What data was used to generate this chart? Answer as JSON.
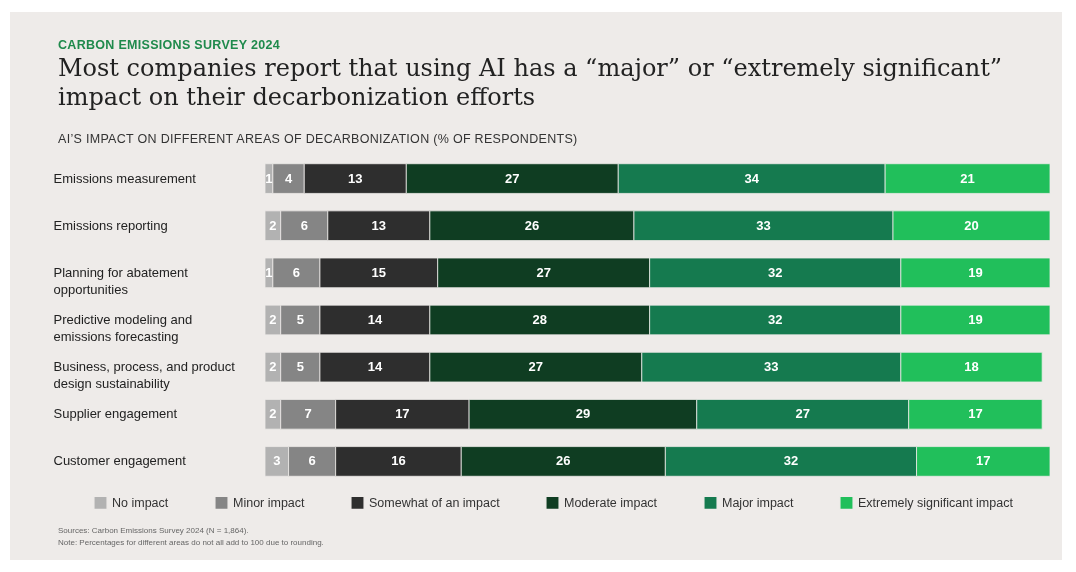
{
  "chart_data": {
    "type": "bar",
    "orientation": "horizontal",
    "stacked": true,
    "data_labels": true,
    "legend": "bottom",
    "grid": false,
    "subtitle": "CARBON EMISSIONS SURVEY 2024",
    "title": "Most companies report that using AI has a “major” or “extremely significant” impact on their decarbonization efforts",
    "annotations": [
      "AI’S IMPACT ON DIFFERENT AREAS OF DECARBONIZATION (% OF RESPONDENTS)",
      "Sources: Carbon Emissions Survey 2024 (N = 1,864).",
      "Note: Percentages for different areas do not all add to 100 due to rounding."
    ],
    "categories": [
      "Emissions measurement",
      "Emissions reporting",
      "Planning for abatement opportunities",
      "Predictive modeling and emissions forecasting",
      "Business, process, and product design sustainability",
      "Supplier engagement",
      "Customer engagement"
    ],
    "series": [
      {
        "name": "No impact",
        "color": "#b2b2b2",
        "values": [
          1,
          2,
          1,
          2,
          2,
          2,
          3
        ]
      },
      {
        "name": "Minor impact",
        "color": "#858585",
        "values": [
          4,
          6,
          6,
          5,
          5,
          7,
          6
        ]
      },
      {
        "name": "Somewhat of an impact",
        "color": "#2e2e2e",
        "values": [
          13,
          13,
          15,
          14,
          14,
          17,
          16
        ]
      },
      {
        "name": "Moderate impact",
        "color": "#0f3d22",
        "values": [
          27,
          26,
          27,
          28,
          27,
          29,
          26
        ]
      },
      {
        "name": "Major impact",
        "color": "#157a4f",
        "values": [
          34,
          33,
          32,
          32,
          33,
          27,
          32
        ]
      },
      {
        "name": "Extremely significant impact",
        "color": "#21bf5b",
        "values": [
          21,
          20,
          19,
          19,
          18,
          17,
          17
        ]
      }
    ]
  }
}
